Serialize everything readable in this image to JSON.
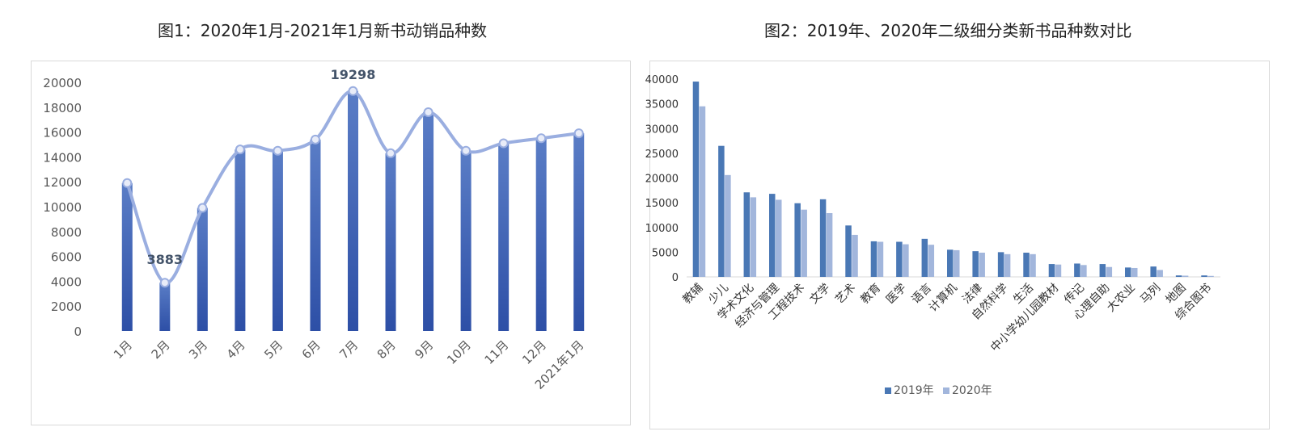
{
  "chart_data": [
    {
      "type": "bar",
      "title": "图1：2020年1月-2021年1月新书动销品种数",
      "categories": [
        "1月",
        "2月",
        "3月",
        "4月",
        "5月",
        "6月",
        "7月",
        "8月",
        "9月",
        "10月",
        "11月",
        "12月",
        "2021年1月"
      ],
      "values": [
        11900,
        3883,
        9900,
        14600,
        14500,
        15400,
        19298,
        14300,
        17600,
        14500,
        15100,
        15500,
        15900
      ],
      "overlay": "smooth-line",
      "data_labels": {
        "2月": "3883",
        "7月": "19298"
      },
      "ylim": [
        0,
        20000
      ],
      "yticks": [
        "0",
        "2000",
        "4000",
        "6000",
        "8000",
        "10000",
        "12000",
        "14000",
        "16000",
        "18000",
        "20000"
      ],
      "grid": false,
      "colors": {
        "bar_top": "#5a7dc6",
        "bar_bottom": "#2d4fa6",
        "line": "#9aaee0",
        "marker_fill": "#e8ecf8",
        "label": "#44546a"
      }
    },
    {
      "type": "bar",
      "title": "图2：2019年、2020年二级细分类新书品种数对比",
      "categories": [
        "教辅",
        "少儿",
        "学术文化",
        "经济与管理",
        "工程技术",
        "文学",
        "艺术",
        "教育",
        "医学",
        "语言",
        "计算机",
        "法律",
        "自然科学",
        "生活",
        "中小学幼儿园教材",
        "传记",
        "心理自助",
        "大农业",
        "马列",
        "地图",
        "综合图书"
      ],
      "series": [
        {
          "name": "2019年",
          "values": [
            39500,
            26500,
            17100,
            16800,
            14900,
            15700,
            10400,
            7200,
            7100,
            7700,
            5500,
            5200,
            5000,
            4900,
            2600,
            2700,
            2600,
            1900,
            2100,
            300,
            300
          ]
        },
        {
          "name": "2020年",
          "values": [
            34500,
            20600,
            16100,
            15600,
            13600,
            12900,
            8500,
            7100,
            6600,
            6500,
            5400,
            4900,
            4600,
            4600,
            2500,
            2400,
            2000,
            1800,
            1400,
            250,
            200
          ]
        }
      ],
      "ylim": [
        0,
        40000
      ],
      "yticks": [
        "0",
        "5000",
        "10000",
        "15000",
        "20000",
        "25000",
        "30000",
        "35000",
        "40000"
      ],
      "grid": false,
      "legend": "bottom-center",
      "colors": {
        "2019年": "#4a78b5",
        "2020年": "#a2b6dc"
      }
    }
  ]
}
